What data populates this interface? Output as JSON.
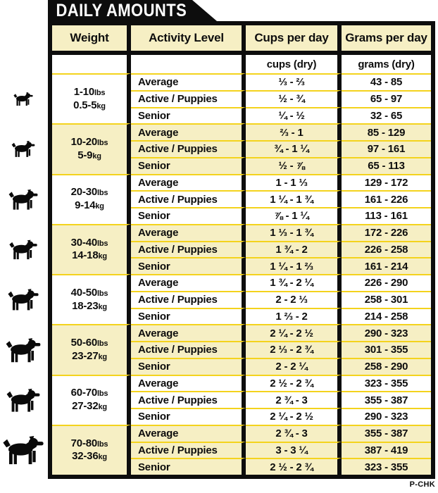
{
  "title": "DAILY AMOUNTS",
  "footer_code": "P-CHK",
  "colors": {
    "ink": "#0d0d0d",
    "cream": "#f6efc4",
    "gold": "#f4d31d"
  },
  "units": {
    "lbs": "lbs",
    "kg": "kg"
  },
  "chart_data": {
    "type": "table",
    "title": "DAILY AMOUNTS",
    "columns": [
      "Weight",
      "Activity Level",
      "Cups per day",
      "Grams per day"
    ],
    "units_row": [
      "",
      "",
      "cups (dry)",
      "grams (dry)"
    ],
    "groups": [
      {
        "weight_lbs": "1-10",
        "weight_kg": "0.5-5",
        "rows": [
          {
            "activity": "Average",
            "cups": "⅓ - ⅔",
            "grams": "43 - 85"
          },
          {
            "activity": "Active / Puppies",
            "cups": "½ - ¾",
            "grams": "65 - 97"
          },
          {
            "activity": "Senior",
            "cups": "¼ - ½",
            "grams": "32 - 65"
          }
        ]
      },
      {
        "weight_lbs": "10-20",
        "weight_kg": "5-9",
        "rows": [
          {
            "activity": "Average",
            "cups": "⅔ - 1",
            "grams": "85 - 129"
          },
          {
            "activity": "Active / Puppies",
            "cups": "¾ - 1 ¼",
            "grams": "97 - 161"
          },
          {
            "activity": "Senior",
            "cups": "½ - ⅞",
            "grams": "65 - 113"
          }
        ]
      },
      {
        "weight_lbs": "20-30",
        "weight_kg": "9-14",
        "rows": [
          {
            "activity": "Average",
            "cups": "1 - 1 ⅓",
            "grams": "129 - 172"
          },
          {
            "activity": "Active / Puppies",
            "cups": "1 ¼ - 1 ¾",
            "grams": "161 - 226"
          },
          {
            "activity": "Senior",
            "cups": "⅞ - 1 ¼",
            "grams": "113 - 161"
          }
        ]
      },
      {
        "weight_lbs": "30-40",
        "weight_kg": "14-18",
        "rows": [
          {
            "activity": "Average",
            "cups": "1 ⅓ - 1 ¾",
            "grams": "172 - 226"
          },
          {
            "activity": "Active / Puppies",
            "cups": "1 ¾ - 2",
            "grams": "226 - 258"
          },
          {
            "activity": "Senior",
            "cups": "1 ¼ - 1 ⅔",
            "grams": "161 - 214"
          }
        ]
      },
      {
        "weight_lbs": "40-50",
        "weight_kg": "18-23",
        "rows": [
          {
            "activity": "Average",
            "cups": "1 ¾ - 2 ¼",
            "grams": "226 - 290"
          },
          {
            "activity": "Active / Puppies",
            "cups": "2 - 2 ⅓",
            "grams": "258 - 301"
          },
          {
            "activity": "Senior",
            "cups": "1 ⅔ - 2",
            "grams": "214 - 258"
          }
        ]
      },
      {
        "weight_lbs": "50-60",
        "weight_kg": "23-27",
        "rows": [
          {
            "activity": "Average",
            "cups": "2 ¼ - 2 ½",
            "grams": "290 - 323"
          },
          {
            "activity": "Active / Puppies",
            "cups": "2 ⅓ - 2 ¾",
            "grams": "301 - 355"
          },
          {
            "activity": "Senior",
            "cups": "2 - 2 ¼",
            "grams": "258 - 290"
          }
        ]
      },
      {
        "weight_lbs": "60-70",
        "weight_kg": "27-32",
        "rows": [
          {
            "activity": "Average",
            "cups": "2 ½ - 2 ¾",
            "grams": "323 - 355"
          },
          {
            "activity": "Active / Puppies",
            "cups": "2 ¾ - 3",
            "grams": "355 - 387"
          },
          {
            "activity": "Senior",
            "cups": "2 ¼ - 2 ½",
            "grams": "290 - 323"
          }
        ]
      },
      {
        "weight_lbs": "70-80",
        "weight_kg": "32-36",
        "rows": [
          {
            "activity": "Average",
            "cups": "2 ¾ - 3",
            "grams": "355 - 387"
          },
          {
            "activity": "Active / Puppies",
            "cups": "3 - 3 ¼",
            "grams": "387 - 419"
          },
          {
            "activity": "Senior",
            "cups": "2 ½ - 2 ¾",
            "grams": "323 - 355"
          }
        ]
      }
    ]
  }
}
